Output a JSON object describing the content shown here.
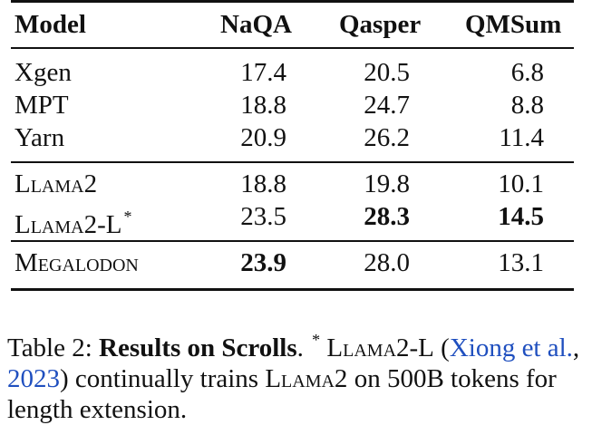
{
  "table": {
    "headers": [
      "Model",
      "NaQA",
      "Qasper",
      "QMSum"
    ],
    "rows": [
      {
        "model": "Xgen",
        "naqa": "17.4",
        "qasper": "20.5",
        "qmsum": "6.8"
      },
      {
        "model": "MPT",
        "naqa": "18.8",
        "qasper": "24.7",
        "qmsum": "8.8"
      },
      {
        "model": "Yarn",
        "naqa": "20.9",
        "qasper": "26.2",
        "qmsum": "11.4"
      },
      {
        "model": "Llama2",
        "naqa": "18.8",
        "qasper": "19.8",
        "qmsum": "10.1"
      },
      {
        "model": "Llama2-L",
        "model_sup": "*",
        "naqa": "23.5",
        "qasper": "28.3",
        "qmsum": "14.5"
      },
      {
        "model": "Megalodon",
        "naqa": "23.9",
        "qasper": "28.0",
        "qmsum": "13.1"
      }
    ]
  },
  "caption": {
    "label": "Table 2:",
    "title": "Results on Scrolls",
    "period": ".",
    "sup": "*",
    "t1": "Llama2-L",
    "paren_open": "(",
    "cite_author": "Xiong et al.",
    "cite_sep": ", ",
    "cite_year": "2023",
    "paren_close": ")",
    "t2": "continually trains",
    "t3": "Llama2",
    "t4": "on 500B tokens for length extension."
  }
}
